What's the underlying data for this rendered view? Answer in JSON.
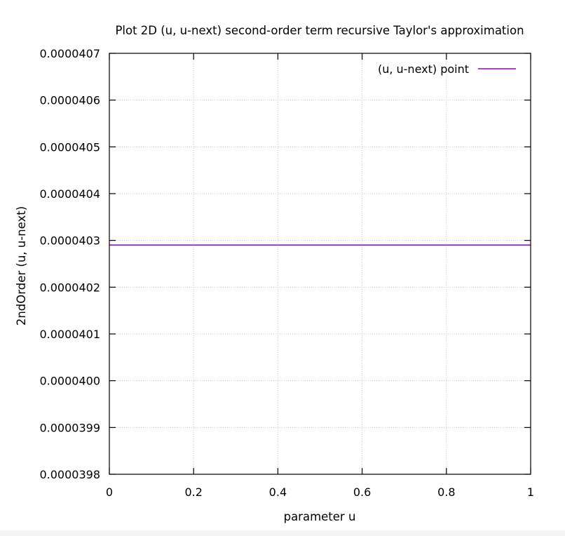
{
  "chart_data": {
    "type": "line",
    "title": "Plot 2D (u, u-next) second-order term recursive Taylor's approximation",
    "xlabel": "parameter u",
    "ylabel": "2ndOrder (u, u-next)",
    "xlim": [
      0,
      1
    ],
    "ylim": [
      3.98e-05,
      4.07e-05
    ],
    "x_ticks": [
      {
        "value": 0,
        "label": "0"
      },
      {
        "value": 0.2,
        "label": "0.2"
      },
      {
        "value": 0.4,
        "label": "0.4"
      },
      {
        "value": 0.6,
        "label": "0.6"
      },
      {
        "value": 0.8,
        "label": "0.8"
      },
      {
        "value": 1,
        "label": "1"
      }
    ],
    "y_ticks": [
      {
        "value": 3.98e-05,
        "label": "0.0000398"
      },
      {
        "value": 3.99e-05,
        "label": "0.0000399"
      },
      {
        "value": 4e-05,
        "label": "0.0000400"
      },
      {
        "value": 4.01e-05,
        "label": "0.0000401"
      },
      {
        "value": 4.02e-05,
        "label": "0.0000402"
      },
      {
        "value": 4.03e-05,
        "label": "0.0000403"
      },
      {
        "value": 4.04e-05,
        "label": "0.0000404"
      },
      {
        "value": 4.05e-05,
        "label": "0.0000405"
      },
      {
        "value": 4.06e-05,
        "label": "0.0000406"
      },
      {
        "value": 4.07e-05,
        "label": "0.0000407"
      }
    ],
    "grid": true,
    "legend_position": "top-right",
    "series": [
      {
        "name": "(u, u-next) point",
        "color": "#9400d3",
        "x": [
          0,
          1
        ],
        "y": [
          4.029e-05,
          4.029e-05
        ]
      }
    ]
  }
}
